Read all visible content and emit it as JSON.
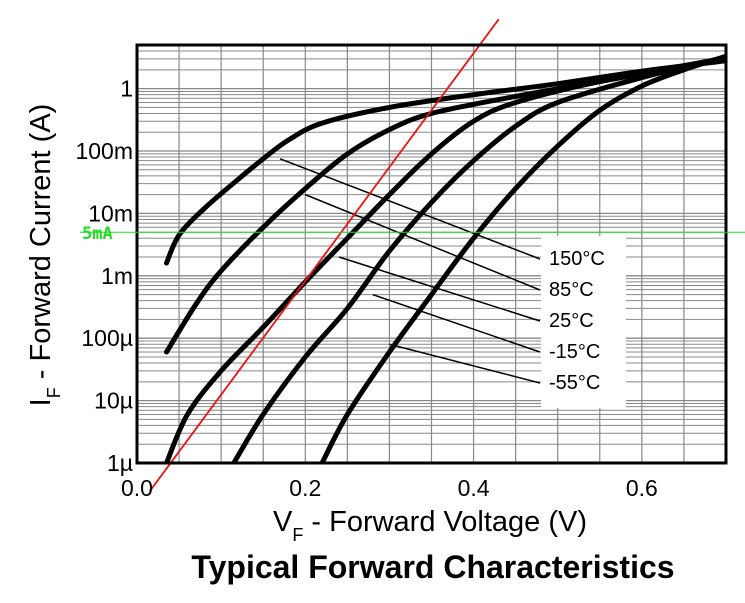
{
  "chart_data": {
    "type": "line",
    "title": "Typical Forward Characteristics",
    "xlabel": {
      "main": "V",
      "sub": "F",
      "rest": " - Forward Voltage (V)"
    },
    "ylabel": {
      "main": "I",
      "sub": "F",
      "rest": " - Forward Current (A)"
    },
    "xlim": [
      0,
      0.7
    ],
    "ylim": [
      1e-06,
      5
    ],
    "yscale": "log",
    "grid": true,
    "x_ticks": [
      {
        "v": 0.0,
        "label": "0.0"
      },
      {
        "v": 0.2,
        "label": "0.2"
      },
      {
        "v": 0.4,
        "label": "0.4"
      },
      {
        "v": 0.6,
        "label": "0.6"
      }
    ],
    "y_ticks": [
      {
        "v": 1e-06,
        "label": "1µ"
      },
      {
        "v": 1e-05,
        "label": "10µ"
      },
      {
        "v": 0.0001,
        "label": "100µ"
      },
      {
        "v": 0.001,
        "label": "1m"
      },
      {
        "v": 0.01,
        "label": "10m"
      },
      {
        "v": 0.1,
        "label": "100m"
      },
      {
        "v": 1,
        "label": "1"
      }
    ],
    "legend_position": "right",
    "series": [
      {
        "name": "150°C",
        "points": [
          [
            0.035,
            0.0016
          ],
          [
            0.05,
            0.0045
          ],
          [
            0.08,
            0.012
          ],
          [
            0.12,
            0.035
          ],
          [
            0.15,
            0.075
          ],
          [
            0.18,
            0.15
          ],
          [
            0.22,
            0.28
          ],
          [
            0.3,
            0.5
          ],
          [
            0.4,
            0.8
          ],
          [
            0.5,
            1.2
          ],
          [
            0.6,
            1.9
          ],
          [
            0.7,
            2.8
          ]
        ],
        "callout": [
          0.17,
          0.075
        ]
      },
      {
        "name": "85°C",
        "points": [
          [
            0.035,
            6e-05
          ],
          [
            0.07,
            0.00035
          ],
          [
            0.1,
            0.0012
          ],
          [
            0.15,
            0.006
          ],
          [
            0.2,
            0.025
          ],
          [
            0.25,
            0.09
          ],
          [
            0.3,
            0.22
          ],
          [
            0.35,
            0.4
          ],
          [
            0.45,
            0.75
          ],
          [
            0.55,
            1.3
          ],
          [
            0.7,
            3.0
          ]
        ],
        "callout": [
          0.2,
          0.02
        ]
      },
      {
        "name": "25°C",
        "points": [
          [
            0.035,
            1e-06
          ],
          [
            0.06,
            6e-06
          ],
          [
            0.1,
            3e-05
          ],
          [
            0.15,
            0.00015
          ],
          [
            0.2,
            0.0008
          ],
          [
            0.25,
            0.004
          ],
          [
            0.3,
            0.02
          ],
          [
            0.35,
            0.09
          ],
          [
            0.4,
            0.3
          ],
          [
            0.45,
            0.6
          ],
          [
            0.55,
            1.3
          ],
          [
            0.7,
            3.1
          ]
        ],
        "callout": [
          0.24,
          0.002
        ]
      },
      {
        "name": "-15°C",
        "points": [
          [
            0.115,
            1e-06
          ],
          [
            0.15,
            6e-06
          ],
          [
            0.2,
            5e-05
          ],
          [
            0.25,
            0.0003
          ],
          [
            0.3,
            0.0025
          ],
          [
            0.35,
            0.015
          ],
          [
            0.4,
            0.07
          ],
          [
            0.45,
            0.25
          ],
          [
            0.5,
            0.6
          ],
          [
            0.6,
            1.5
          ],
          [
            0.7,
            3.2
          ]
        ],
        "callout": [
          0.28,
          0.0005
        ]
      },
      {
        "name": "-55°C",
        "points": [
          [
            0.22,
            1e-06
          ],
          [
            0.25,
            6e-06
          ],
          [
            0.3,
            6e-05
          ],
          [
            0.35,
            0.0005
          ],
          [
            0.4,
            0.004
          ],
          [
            0.45,
            0.025
          ],
          [
            0.5,
            0.12
          ],
          [
            0.55,
            0.45
          ],
          [
            0.6,
            1.1
          ],
          [
            0.65,
            2.0
          ],
          [
            0.7,
            3.3
          ]
        ],
        "callout": [
          0.3,
          8e-05
        ]
      }
    ],
    "annotations": {
      "marker_label": "5mA",
      "marker_current": 0.005,
      "marker_color": "#22dd22",
      "tangent_color": "#ee1111",
      "tangent_points": [
        [
          0.015,
          3.5e-07
        ],
        [
          0.43,
          13
        ]
      ]
    }
  }
}
